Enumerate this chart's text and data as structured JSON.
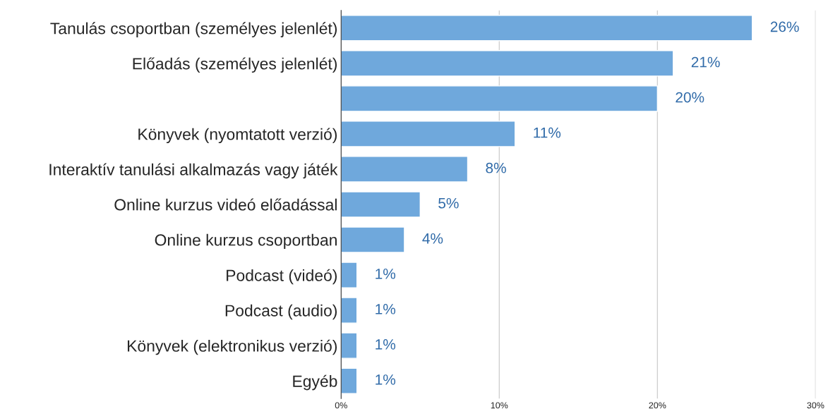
{
  "chart_data": {
    "type": "bar",
    "orientation": "horizontal",
    "categories": [
      "Tanulás csoportban (személyes jelenlét)",
      "Előadás (személyes jelenlét)",
      null,
      "Könyvek (nyomtatott verzió)",
      "Interaktív tanulási alkalmazás vagy játék",
      "Online kurzus videó előadással",
      "Online kurzus csoportban",
      "Podcast (videó)",
      "Podcast (audio)",
      "Könyvek (elektronikus verzió)",
      "Egyéb"
    ],
    "values": [
      26,
      21,
      20,
      11,
      8,
      5,
      4,
      1,
      1,
      1,
      1
    ],
    "value_labels": [
      "26%",
      "21%",
      "20%",
      "11%",
      "8%",
      "5%",
      "4%",
      "1%",
      "1%",
      "1%",
      "1%"
    ],
    "color": "#6fa8dc",
    "xlim": [
      0,
      30
    ],
    "xticks": [
      {
        "value": 0,
        "label": "0%"
      },
      {
        "value": 10,
        "label": "10%"
      },
      {
        "value": 20,
        "label": "20%"
      },
      {
        "value": 30,
        "label": "30%"
      }
    ],
    "grid": "x"
  }
}
